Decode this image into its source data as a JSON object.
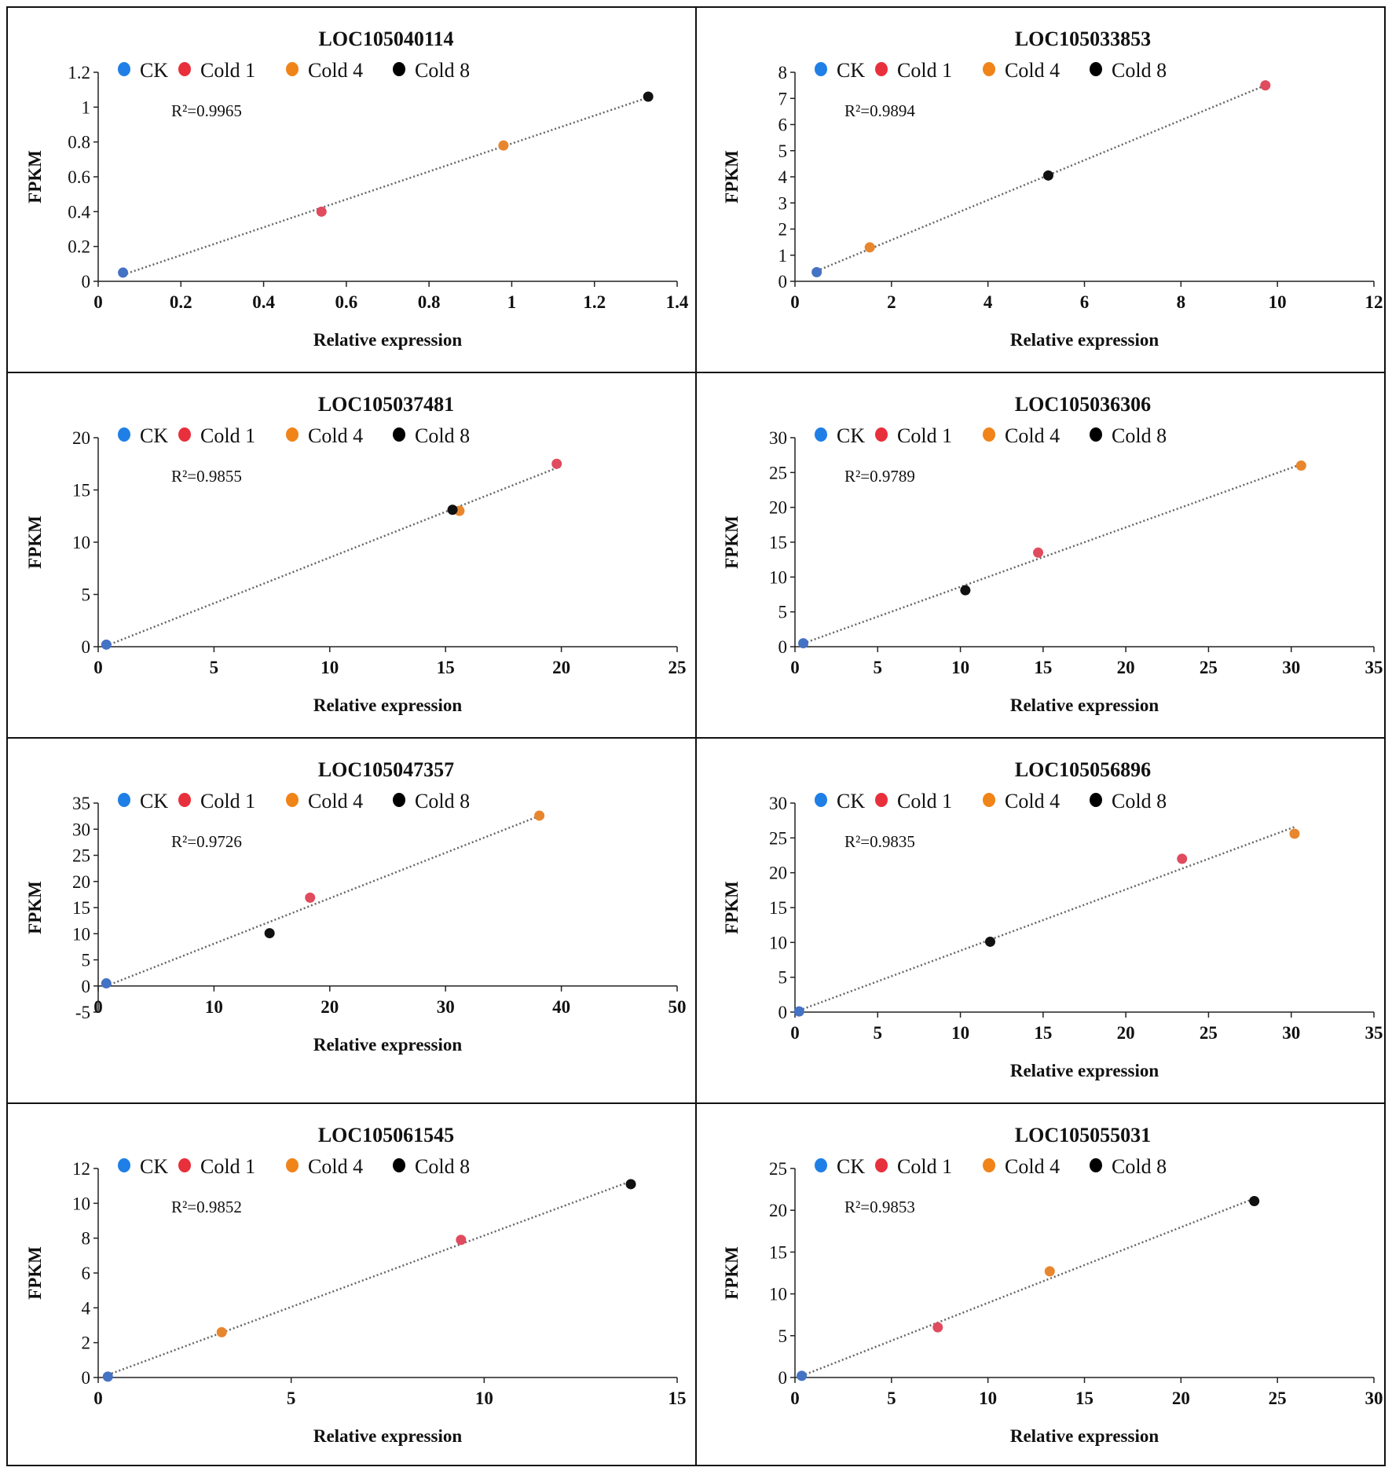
{
  "chart_data": [
    {
      "type": "scatter",
      "title": "LOC105040114",
      "xlabel": "Relative expression",
      "ylabel": "FPKM",
      "r2": "R²=0.9965",
      "xlim": [
        0,
        1.4
      ],
      "ylim": [
        0,
        1.2
      ],
      "xticks": [
        "0",
        "0.2",
        "0.4",
        "0.6",
        "0.8",
        "1",
        "1.2",
        "1.4"
      ],
      "yticks": [
        "0",
        "0.2",
        "0.4",
        "0.6",
        "0.8",
        "1",
        "1.2"
      ],
      "points": [
        {
          "series": "CK",
          "x": 0.06,
          "y": 0.05
        },
        {
          "series": "Cold 1",
          "x": 0.54,
          "y": 0.4
        },
        {
          "series": "Cold 4",
          "x": 0.98,
          "y": 0.78
        },
        {
          "series": "Cold 8",
          "x": 1.33,
          "y": 1.06
        }
      ]
    },
    {
      "type": "scatter",
      "title": "LOC105033853",
      "xlabel": "Relative expression",
      "ylabel": "FPKM",
      "r2": "R²=0.9894",
      "xlim": [
        0,
        12
      ],
      "ylim": [
        0,
        8
      ],
      "xticks": [
        "0",
        "2",
        "4",
        "6",
        "8",
        "10",
        "12"
      ],
      "yticks": [
        "0",
        "1",
        "2",
        "3",
        "4",
        "5",
        "6",
        "7",
        "8"
      ],
      "points": [
        {
          "series": "CK",
          "x": 0.45,
          "y": 0.35
        },
        {
          "series": "Cold 4",
          "x": 1.55,
          "y": 1.3
        },
        {
          "series": "Cold 8",
          "x": 5.25,
          "y": 4.05
        },
        {
          "series": "Cold 1",
          "x": 9.75,
          "y": 7.5
        }
      ]
    },
    {
      "type": "scatter",
      "title": "LOC105037481",
      "xlabel": "Relative expression",
      "ylabel": "FPKM",
      "r2": "R²=0.9855",
      "xlim": [
        0,
        25
      ],
      "ylim": [
        0,
        20
      ],
      "xticks": [
        "0",
        "5",
        "10",
        "15",
        "20",
        "25"
      ],
      "yticks": [
        "0",
        "5",
        "10",
        "15",
        "20"
      ],
      "points": [
        {
          "series": "CK",
          "x": 0.35,
          "y": 0.2
        },
        {
          "series": "Cold 4",
          "x": 15.6,
          "y": 13.0
        },
        {
          "series": "Cold 8",
          "x": 15.3,
          "y": 13.1
        },
        {
          "series": "Cold 1",
          "x": 19.8,
          "y": 17.5
        }
      ]
    },
    {
      "type": "scatter",
      "title": "LOC105036306",
      "xlabel": "Relative expression",
      "ylabel": "FPKM",
      "r2": "R²=0.9789",
      "xlim": [
        0,
        35
      ],
      "ylim": [
        0,
        30
      ],
      "xticks": [
        "0",
        "5",
        "10",
        "15",
        "20",
        "25",
        "30",
        "35"
      ],
      "yticks": [
        "0",
        "5",
        "10",
        "15",
        "20",
        "25",
        "30"
      ],
      "points": [
        {
          "series": "CK",
          "x": 0.5,
          "y": 0.5
        },
        {
          "series": "Cold 8",
          "x": 10.3,
          "y": 8.1
        },
        {
          "series": "Cold 1",
          "x": 14.7,
          "y": 13.5
        },
        {
          "series": "Cold 4",
          "x": 30.6,
          "y": 26.0
        }
      ]
    },
    {
      "type": "scatter",
      "title": "LOC105047357",
      "xlabel": "Relative expression",
      "ylabel": "FPKM",
      "r2": "R²=0.9726",
      "xlim": [
        0,
        50
      ],
      "ylim": [
        -5,
        35
      ],
      "xticks": [
        "0",
        "10",
        "20",
        "30",
        "40",
        "50"
      ],
      "yticks": [
        "-5",
        "0",
        "5",
        "10",
        "15",
        "20",
        "25",
        "30",
        "35"
      ],
      "points": [
        {
          "series": "CK",
          "x": 0.7,
          "y": 0.5
        },
        {
          "series": "Cold 8",
          "x": 14.8,
          "y": 10.1
        },
        {
          "series": "Cold 1",
          "x": 18.3,
          "y": 16.9
        },
        {
          "series": "Cold 4",
          "x": 38.1,
          "y": 32.6
        }
      ]
    },
    {
      "type": "scatter",
      "title": "LOC105056896",
      "xlabel": "Relative expression",
      "ylabel": "FPKM",
      "r2": "R²=0.9835",
      "xlim": [
        0,
        35
      ],
      "ylim": [
        0,
        30
      ],
      "xticks": [
        "0",
        "5",
        "10",
        "15",
        "20",
        "25",
        "30",
        "35"
      ],
      "yticks": [
        "0",
        "5",
        "10",
        "15",
        "20",
        "25",
        "30"
      ],
      "points": [
        {
          "series": "CK",
          "x": 0.25,
          "y": 0.1
        },
        {
          "series": "Cold 8",
          "x": 11.8,
          "y": 10.1
        },
        {
          "series": "Cold 1",
          "x": 23.4,
          "y": 22.0
        },
        {
          "series": "Cold 4",
          "x": 30.2,
          "y": 25.6
        }
      ]
    },
    {
      "type": "scatter",
      "title": "LOC105061545",
      "xlabel": "Relative expression",
      "ylabel": "FPKM",
      "r2": "R²=0.9852",
      "xlim": [
        0,
        15
      ],
      "ylim": [
        0,
        12
      ],
      "xticks": [
        "0",
        "5",
        "10",
        "15"
      ],
      "yticks": [
        "0",
        "2",
        "4",
        "6",
        "8",
        "10",
        "12"
      ],
      "points": [
        {
          "series": "CK",
          "x": 0.25,
          "y": 0.05
        },
        {
          "series": "Cold 4",
          "x": 3.2,
          "y": 2.6
        },
        {
          "series": "Cold 1",
          "x": 9.4,
          "y": 7.9
        },
        {
          "series": "Cold 8",
          "x": 13.8,
          "y": 11.1
        }
      ]
    },
    {
      "type": "scatter",
      "title": "LOC105055031",
      "xlabel": "Relative expression",
      "ylabel": "FPKM",
      "r2": "R²=0.9853",
      "xlim": [
        0,
        30
      ],
      "ylim": [
        0,
        25
      ],
      "xticks": [
        "0",
        "5",
        "10",
        "15",
        "20",
        "25",
        "30"
      ],
      "yticks": [
        "0",
        "5",
        "10",
        "15",
        "20",
        "25"
      ],
      "points": [
        {
          "series": "CK",
          "x": 0.35,
          "y": 0.2
        },
        {
          "series": "Cold 1",
          "x": 7.4,
          "y": 6.0
        },
        {
          "series": "Cold 4",
          "x": 13.2,
          "y": 12.7
        },
        {
          "series": "Cold 8",
          "x": 23.8,
          "y": 21.1
        }
      ]
    }
  ],
  "legend": [
    {
      "name": "CK",
      "color": "#1f7fe6"
    },
    {
      "name": "Cold 1",
      "color": "#e8303c"
    },
    {
      "name": "Cold 4",
      "color": "#f08418"
    },
    {
      "name": "Cold 8",
      "color": "#000000"
    }
  ],
  "point_colors": {
    "CK": "#4472c4",
    "Cold 1": "#e04b5e",
    "Cold 4": "#e8862e",
    "Cold 8": "#111111"
  }
}
